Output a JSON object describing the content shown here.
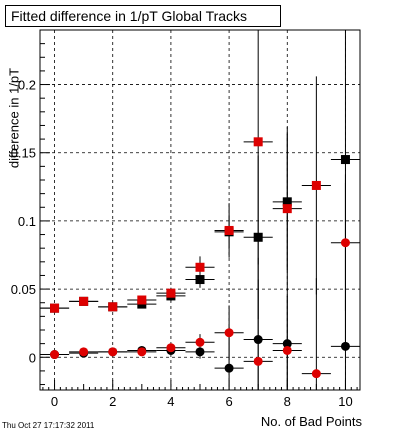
{
  "chart_data": {
    "type": "scatter",
    "title": "Fitted difference in 1/pT  Global Tracks",
    "xlabel": "No. of Bad Points",
    "ylabel": "difference in 1/pT",
    "xlim": [
      -0.5,
      10.5
    ],
    "ylim": [
      -0.024,
      0.24
    ],
    "xticks": [
      "0",
      "2",
      "4",
      "6",
      "8",
      "10"
    ],
    "yticks": [
      "0",
      "0.05",
      "0.1",
      "0.15",
      "0.2"
    ],
    "grid": true,
    "series": [
      {
        "marker": "square",
        "color": "#000000",
        "x": [
          0,
          1,
          2,
          3,
          4,
          5,
          6,
          7,
          8,
          10
        ],
        "y": [
          0.036,
          0.041,
          0.037,
          0.039,
          0.045,
          0.057,
          0.092,
          0.088,
          0.114,
          0.145
        ],
        "err": [
          0.002,
          0.002,
          0.002,
          0.003,
          0.004,
          0.006,
          0.012,
          0.06,
          0.05,
          0.14
        ]
      },
      {
        "marker": "square",
        "color": "#dd0000",
        "x": [
          0,
          1,
          2,
          3,
          4,
          5,
          6,
          7,
          8,
          9
        ],
        "y": [
          0.036,
          0.041,
          0.037,
          0.042,
          0.047,
          0.066,
          0.093,
          0.158,
          0.109,
          0.126
        ],
        "err": [
          0.002,
          0.002,
          0.002,
          0.003,
          0.004,
          0.008,
          0.02,
          0.09,
          0.06,
          0.08
        ]
      },
      {
        "marker": "circle",
        "color": "#000000",
        "x": [
          0,
          1,
          2,
          3,
          4,
          5,
          6,
          7,
          8,
          10
        ],
        "y": [
          0.002,
          0.003,
          0.004,
          0.005,
          0.005,
          0.004,
          -0.008,
          0.013,
          0.01,
          0.008
        ],
        "err": [
          0.001,
          0.001,
          0.001,
          0.002,
          0.003,
          0.005,
          0.03,
          0.06,
          0.04,
          0.12
        ]
      },
      {
        "marker": "circle",
        "color": "#dd0000",
        "x": [
          0,
          1,
          2,
          3,
          4,
          5,
          6,
          7,
          8,
          9,
          10
        ],
        "y": [
          0.002,
          0.004,
          0.004,
          0.004,
          0.007,
          0.011,
          0.018,
          -0.003,
          0.005,
          -0.012,
          0.084
        ],
        "err": [
          0.001,
          0.001,
          0.001,
          0.002,
          0.003,
          0.006,
          0.02,
          0.06,
          0.04,
          0.07,
          0.05
        ]
      }
    ]
  },
  "footer": {
    "timestamp": "Thu Oct 27 17:17:32 2011"
  }
}
